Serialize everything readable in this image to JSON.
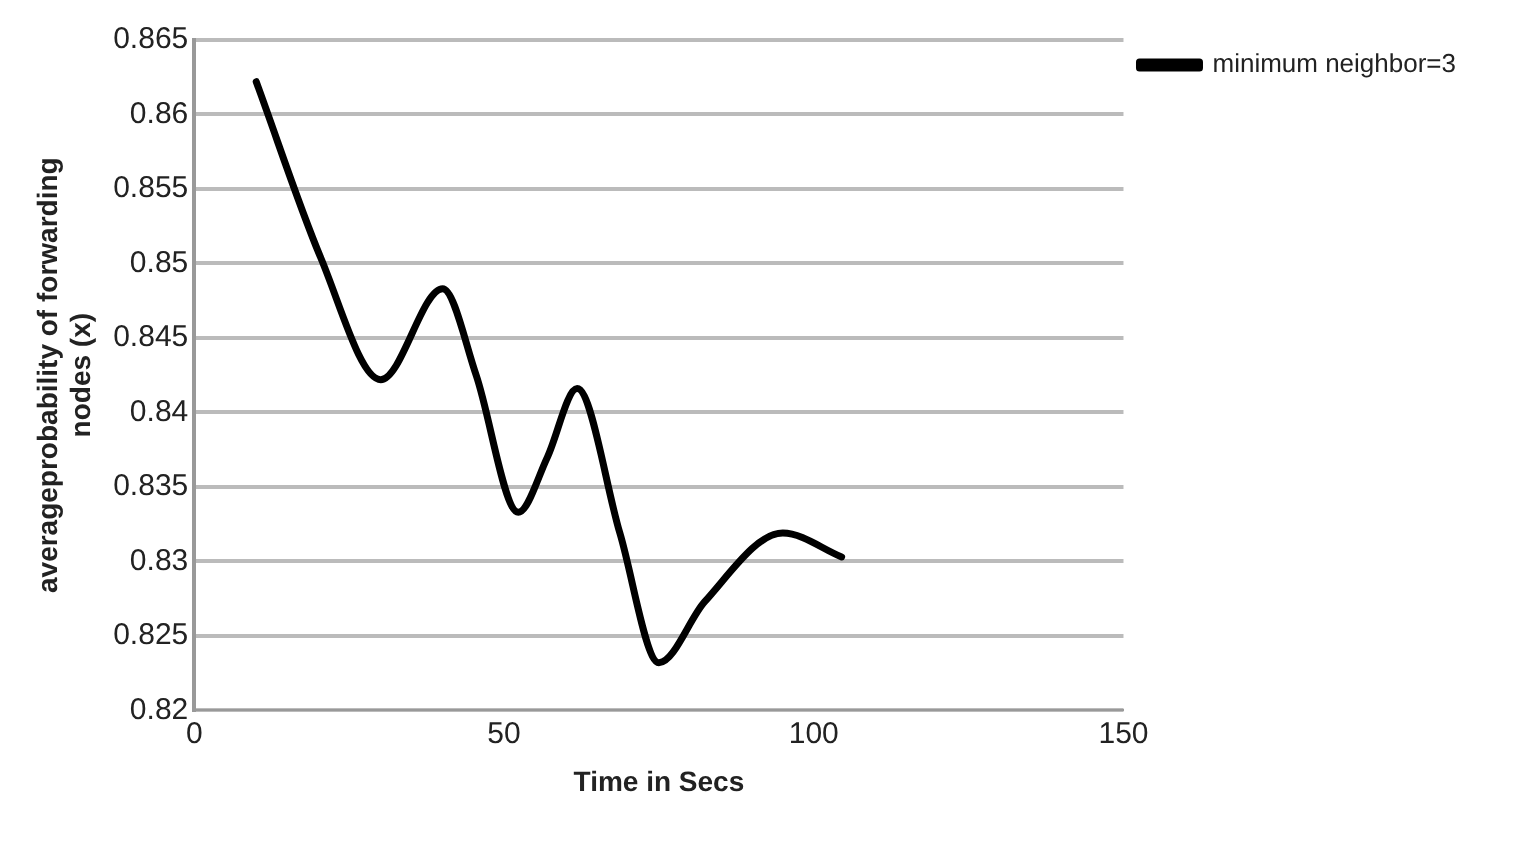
{
  "chart_data": {
    "type": "line",
    "xlabel": "Time in Secs",
    "ylabel": "averageprobability of forwarding nodes (x)",
    "series": [
      {
        "name": "minimum neighbor=3",
        "color": "#000000",
        "x": [
          10,
          20.4,
          30.1,
          40.1,
          45.5,
          52.3,
          57,
          61.8,
          68.7,
          75,
          82.4,
          95,
          104.5
        ],
        "values": [
          0.8622,
          0.8504,
          0.8422,
          0.8483,
          0.8425,
          0.8333,
          0.837,
          0.8416,
          0.8319,
          0.8232,
          0.8273,
          0.8319,
          0.8303
        ]
      }
    ],
    "xlim": [
      0,
      150
    ],
    "xticks": [
      0,
      50,
      100,
      150
    ],
    "ylim": [
      0.82,
      0.865
    ],
    "yticks": [
      0.82,
      0.825,
      0.83,
      0.835,
      0.84,
      0.845,
      0.85,
      0.855,
      0.86,
      0.865
    ],
    "grid": "y",
    "legend": "right",
    "marker": "none",
    "line_style": "solid"
  }
}
